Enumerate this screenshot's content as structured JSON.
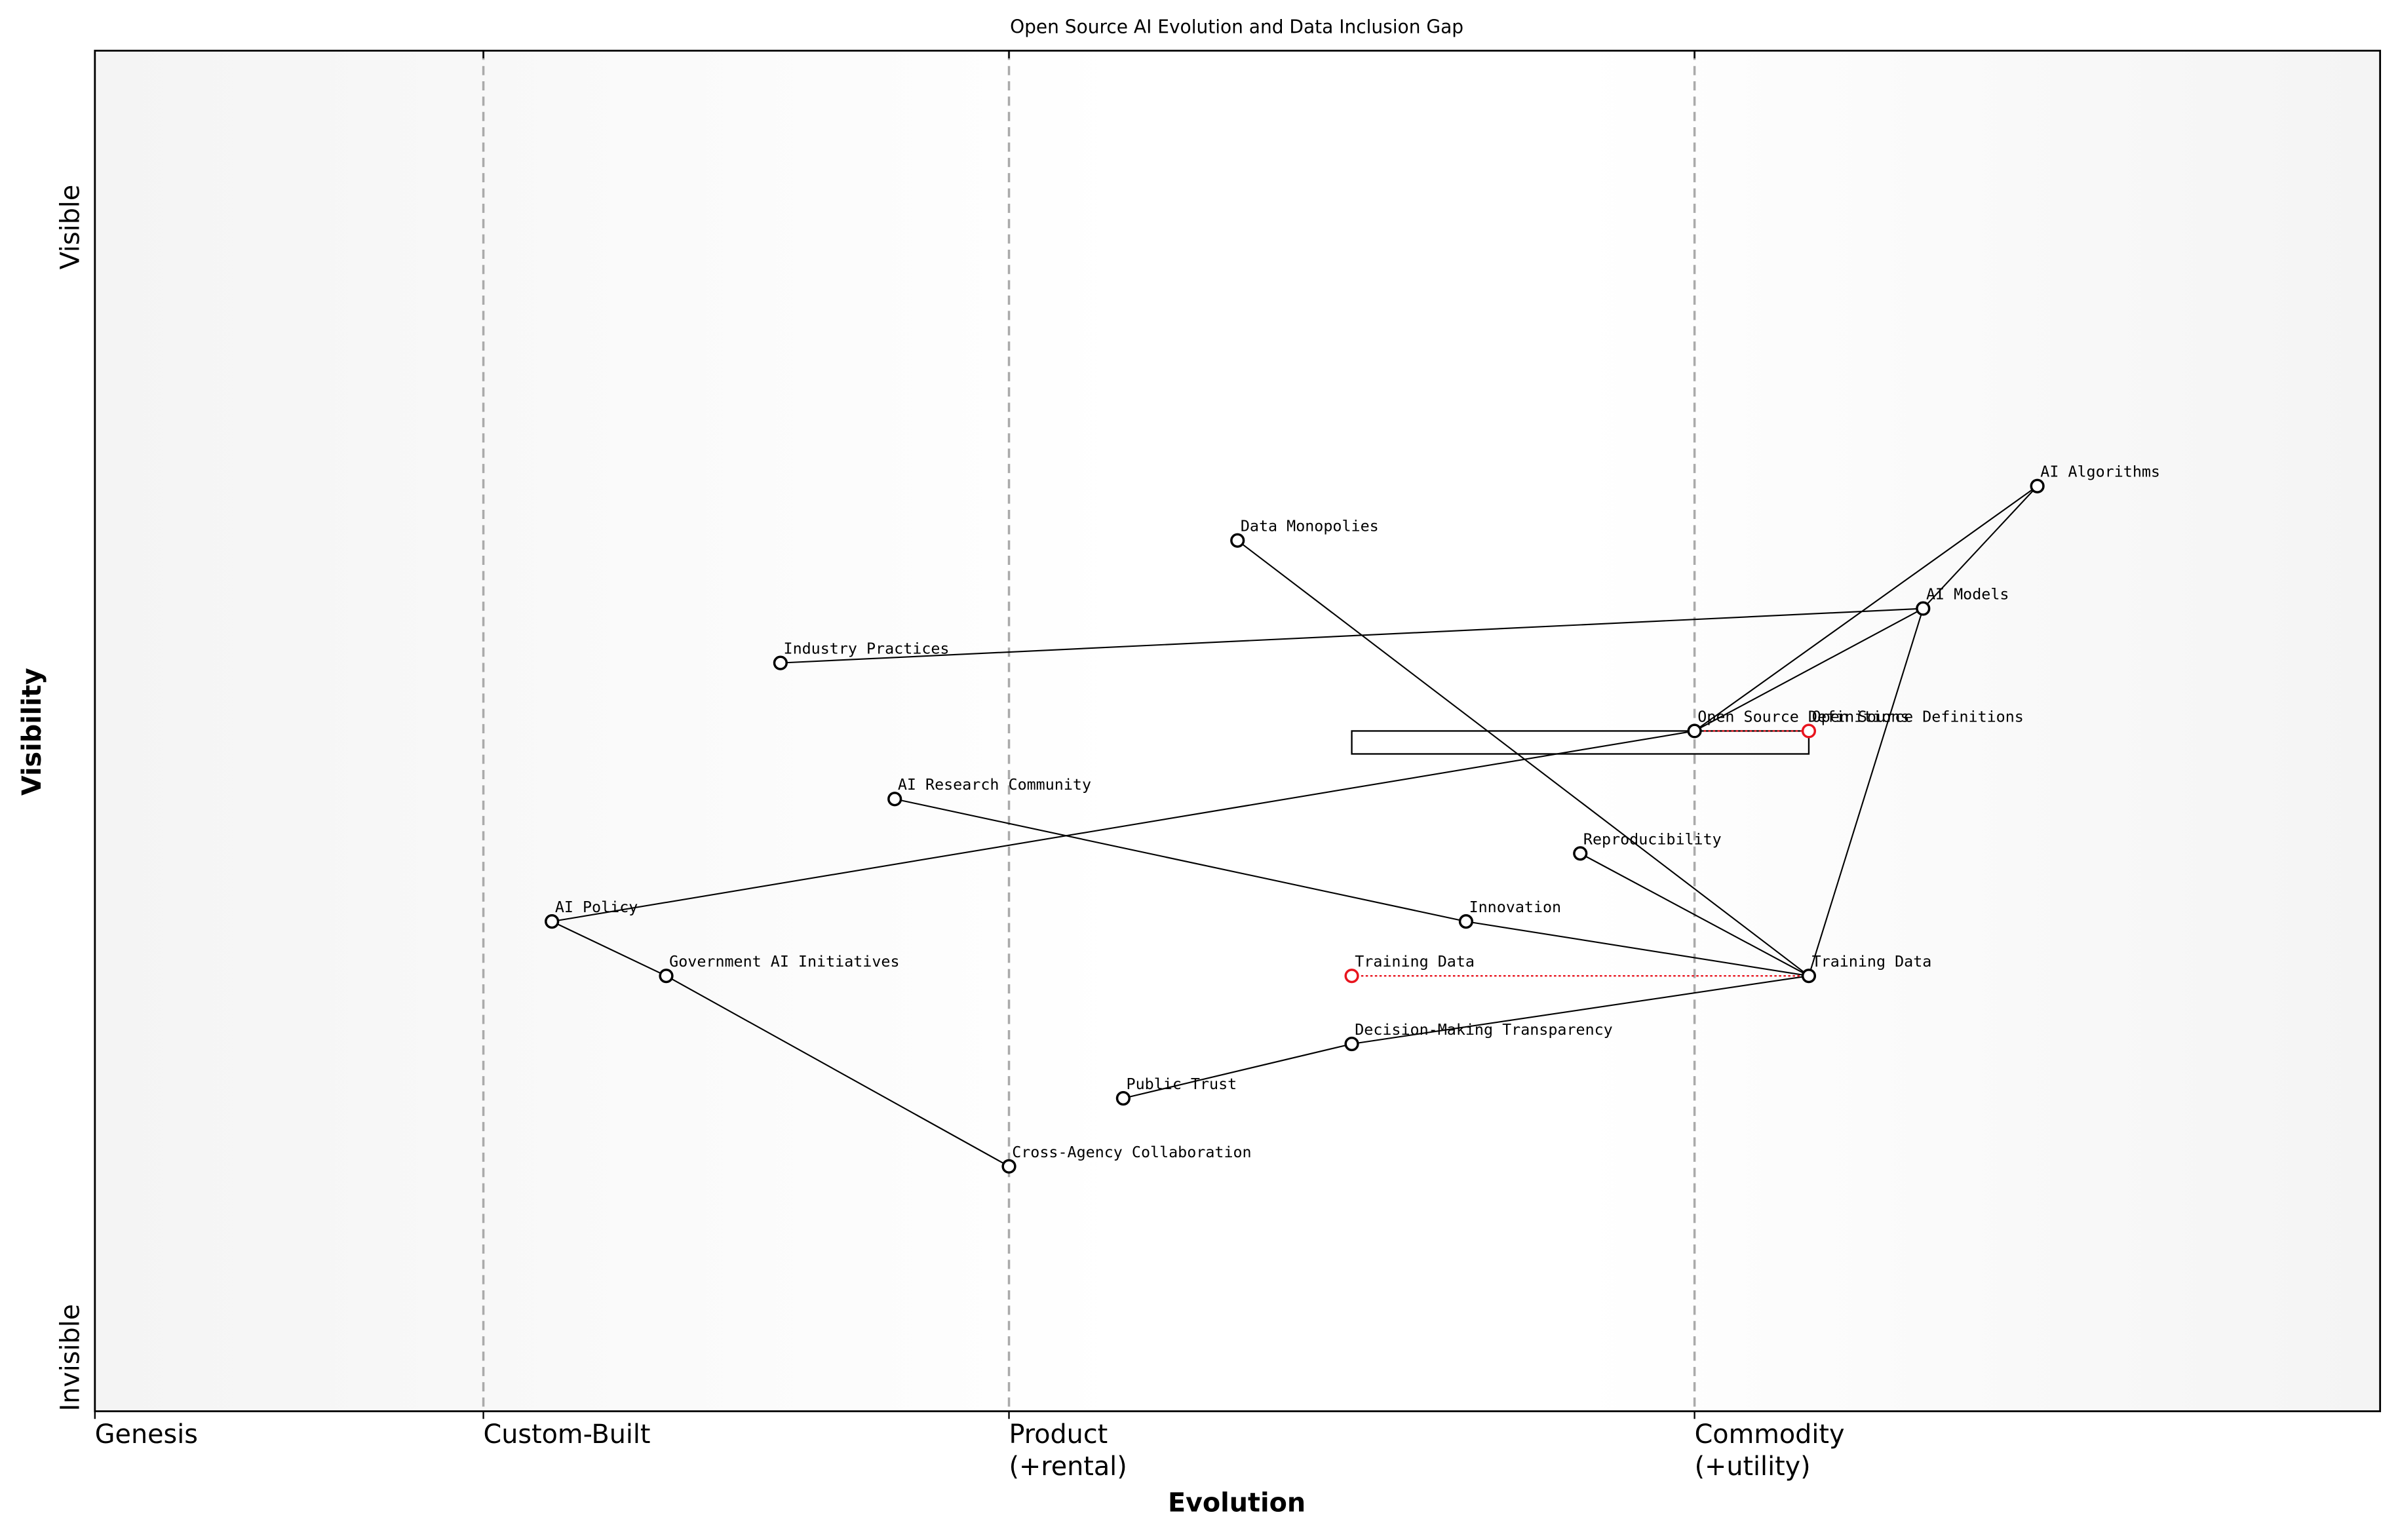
{
  "chart_data": {
    "type": "wardley",
    "title": "Open Source AI Evolution and Data Inclusion Gap",
    "x_label": "Evolution",
    "y_label": "Visibility",
    "y_top_label": "Visible",
    "y_bottom_label": "Invisible",
    "xlim": [
      0,
      1
    ],
    "ylim": [
      0,
      1
    ],
    "stages": [
      {
        "value": 0,
        "label": [
          "Genesis"
        ]
      },
      {
        "value": 0.17,
        "label": [
          "Custom-Built"
        ]
      },
      {
        "value": 0.4,
        "label": [
          "Product",
          "(+rental)"
        ]
      },
      {
        "value": 0.7,
        "label": [
          "Commodity",
          "(+utility)"
        ]
      }
    ],
    "components": [
      {
        "name": "AI Algorithms",
        "evolution": 0.85,
        "visibility": 0.68
      },
      {
        "name": "Data Monopolies",
        "evolution": 0.5,
        "visibility": 0.64
      },
      {
        "name": "AI Models",
        "evolution": 0.8,
        "visibility": 0.59
      },
      {
        "name": "Industry Practices",
        "evolution": 0.3,
        "visibility": 0.55
      },
      {
        "name": "Open Source Definitions",
        "evolution": 0.7,
        "visibility": 0.5
      },
      {
        "name": "AI Research Community",
        "evolution": 0.35,
        "visibility": 0.45
      },
      {
        "name": "Reproducibility",
        "evolution": 0.65,
        "visibility": 0.41
      },
      {
        "name": "AI Policy",
        "evolution": 0.2,
        "visibility": 0.36
      },
      {
        "name": "Innovation",
        "evolution": 0.6,
        "visibility": 0.36
      },
      {
        "name": "Government AI Initiatives",
        "evolution": 0.25,
        "visibility": 0.32
      },
      {
        "name": "Training Data",
        "evolution": 0.75,
        "visibility": 0.32
      },
      {
        "name": "Decision-Making Transparency",
        "evolution": 0.55,
        "visibility": 0.27
      },
      {
        "name": "Public Trust",
        "evolution": 0.45,
        "visibility": 0.23
      },
      {
        "name": "Cross-Agency Collaboration",
        "evolution": 0.4,
        "visibility": 0.18
      }
    ],
    "links": [
      [
        7,
        4
      ],
      [
        7,
        9
      ],
      [
        9,
        13
      ],
      [
        3,
        2
      ],
      [
        2,
        4
      ],
      [
        0,
        4
      ],
      [
        0,
        2
      ],
      [
        2,
        10
      ],
      [
        1,
        10
      ],
      [
        5,
        8
      ],
      [
        8,
        10
      ],
      [
        6,
        10
      ],
      [
        11,
        10
      ],
      [
        12,
        11
      ]
    ],
    "evolved": [
      {
        "component": 10,
        "name": "Training Data",
        "evolution": 0.55
      },
      {
        "component": 4,
        "name": "Open Source Definitions",
        "evolution": 0.75
      }
    ],
    "evolve_color": "#e8141e",
    "pipeline": {
      "component": 4,
      "evolution": [
        0.55,
        0.75
      ]
    }
  }
}
